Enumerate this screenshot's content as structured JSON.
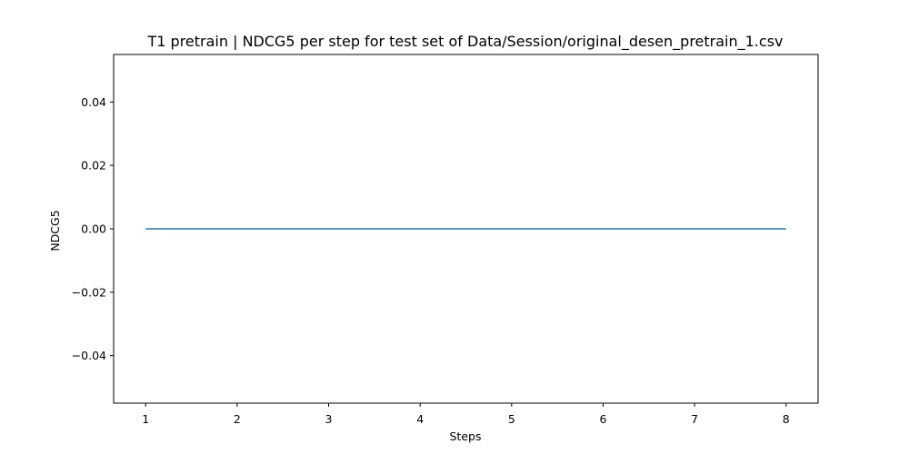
{
  "chart_data": {
    "type": "line",
    "title": "T1 pretrain | NDCG5 per step for test set of Data/Session/original_desen_pretrain_1.csv",
    "xlabel": "Steps",
    "ylabel": "NDCG5",
    "xlim": [
      0.65,
      8.35
    ],
    "ylim": [
      -0.055,
      0.055
    ],
    "x_ticks": [
      1,
      2,
      3,
      4,
      5,
      6,
      7,
      8
    ],
    "x_tick_labels": [
      "1",
      "2",
      "3",
      "4",
      "5",
      "6",
      "7",
      "8"
    ],
    "y_ticks": [
      -0.04,
      -0.02,
      0.0,
      0.02,
      0.04
    ],
    "y_tick_labels": [
      "−0.04",
      "−0.02",
      "0.00",
      "0.02",
      "0.04"
    ],
    "grid": false,
    "series": [
      {
        "x": [
          1,
          2,
          3,
          4,
          5,
          6,
          7,
          8
        ],
        "values": [
          0,
          0,
          0,
          0,
          0,
          0,
          0,
          0
        ],
        "color": "#1f77b4"
      }
    ]
  }
}
